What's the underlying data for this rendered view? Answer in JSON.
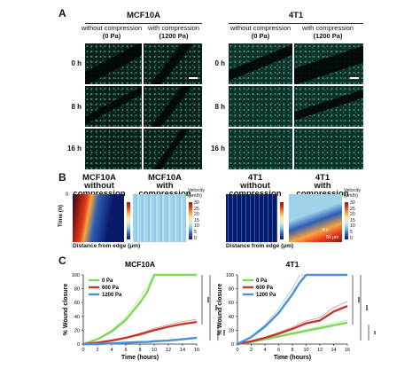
{
  "panelA": {
    "letter": "A",
    "groups": [
      {
        "title": "MCF10A",
        "col1": "without compression",
        "col1b": "(0 Pa)",
        "col2": "with compression",
        "col2b": "(1200 Pa)"
      },
      {
        "title": "4T1",
        "col1": "without compression",
        "col1b": "(0 Pa)",
        "col2": "with compression",
        "col2b": "(1200 Pa)"
      }
    ],
    "rows": [
      "0 h",
      "8 h",
      "16 h"
    ]
  },
  "panelB": {
    "letter": "B",
    "kymographs": [
      {
        "title": "MCF10A",
        "subtitle": "without compression"
      },
      {
        "title": "MCF10A",
        "subtitle": "with compression"
      },
      {
        "title": "4T1",
        "subtitle": "without compression"
      },
      {
        "title": "4T1",
        "subtitle": "with compression"
      }
    ],
    "ylabel": "Time (h)",
    "y_tick_top": "0",
    "xlabel": "Distance from edge (μm)",
    "cbar_title": "Velocity",
    "cbar_unit": "(μm/h)",
    "cbar_ticks": [
      "30",
      "25",
      "20",
      "15",
      "10",
      "5",
      "0"
    ],
    "inset_labels": [
      "8 h",
      "50 μm"
    ]
  },
  "panelC": {
    "letter": "C",
    "colors": {
      "0 Pa": "#7ed957",
      "600 Pa": "#c0392b",
      "1200 Pa": "#4a90d9"
    },
    "significance": [
      "***",
      "***",
      "***",
      "***",
      "***",
      "**"
    ]
  },
  "chart_data": [
    {
      "type": "line",
      "title": "MCF10A",
      "xlabel": "Time (hours)",
      "ylabel": "% Wound closure",
      "xlim": [
        0,
        16
      ],
      "ylim": [
        0,
        100
      ],
      "xticks": [
        0,
        2,
        4,
        6,
        8,
        10,
        12,
        14,
        16
      ],
      "yticks": [
        0,
        20,
        40,
        60,
        80,
        100
      ],
      "legend": "top-left",
      "x": [
        0,
        2,
        4,
        6,
        8,
        9,
        10,
        12,
        14,
        16
      ],
      "series": [
        {
          "name": "0 Pa",
          "color": "#7ed957",
          "values": [
            0,
            7,
            18,
            35,
            60,
            75,
            100,
            100,
            100,
            100
          ]
        },
        {
          "name": "600 Pa",
          "color": "#c0392b",
          "values": [
            0,
            2,
            5,
            9,
            14,
            17,
            20,
            25,
            29,
            32
          ]
        },
        {
          "name": "1200 Pa",
          "color": "#4a90d9",
          "values": [
            0,
            0,
            1,
            2,
            3,
            3,
            4,
            5,
            7,
            9
          ]
        }
      ]
    },
    {
      "type": "line",
      "title": "4T1",
      "xlabel": "Time (hours)",
      "ylabel": "% Wound closure",
      "xlim": [
        0,
        16
      ],
      "ylim": [
        0,
        100
      ],
      "xticks": [
        0,
        2,
        4,
        6,
        8,
        10,
        12,
        14,
        16
      ],
      "yticks": [
        0,
        20,
        40,
        60,
        80,
        100
      ],
      "legend": "top-left",
      "x": [
        0,
        2,
        4,
        6,
        8,
        9,
        10,
        12,
        14,
        16
      ],
      "series": [
        {
          "name": "0 Pa",
          "color": "#7ed957",
          "values": [
            0,
            3,
            7,
            11,
            15,
            17,
            19,
            23,
            27,
            31
          ]
        },
        {
          "name": "600 Pa",
          "color": "#c0392b",
          "values": [
            0,
            4,
            9,
            15,
            22,
            26,
            30,
            34,
            47,
            55
          ]
        },
        {
          "name": "1200 Pa",
          "color": "#4a90d9",
          "values": [
            0,
            10,
            25,
            45,
            72,
            88,
            100,
            100,
            100,
            100
          ]
        }
      ]
    }
  ]
}
